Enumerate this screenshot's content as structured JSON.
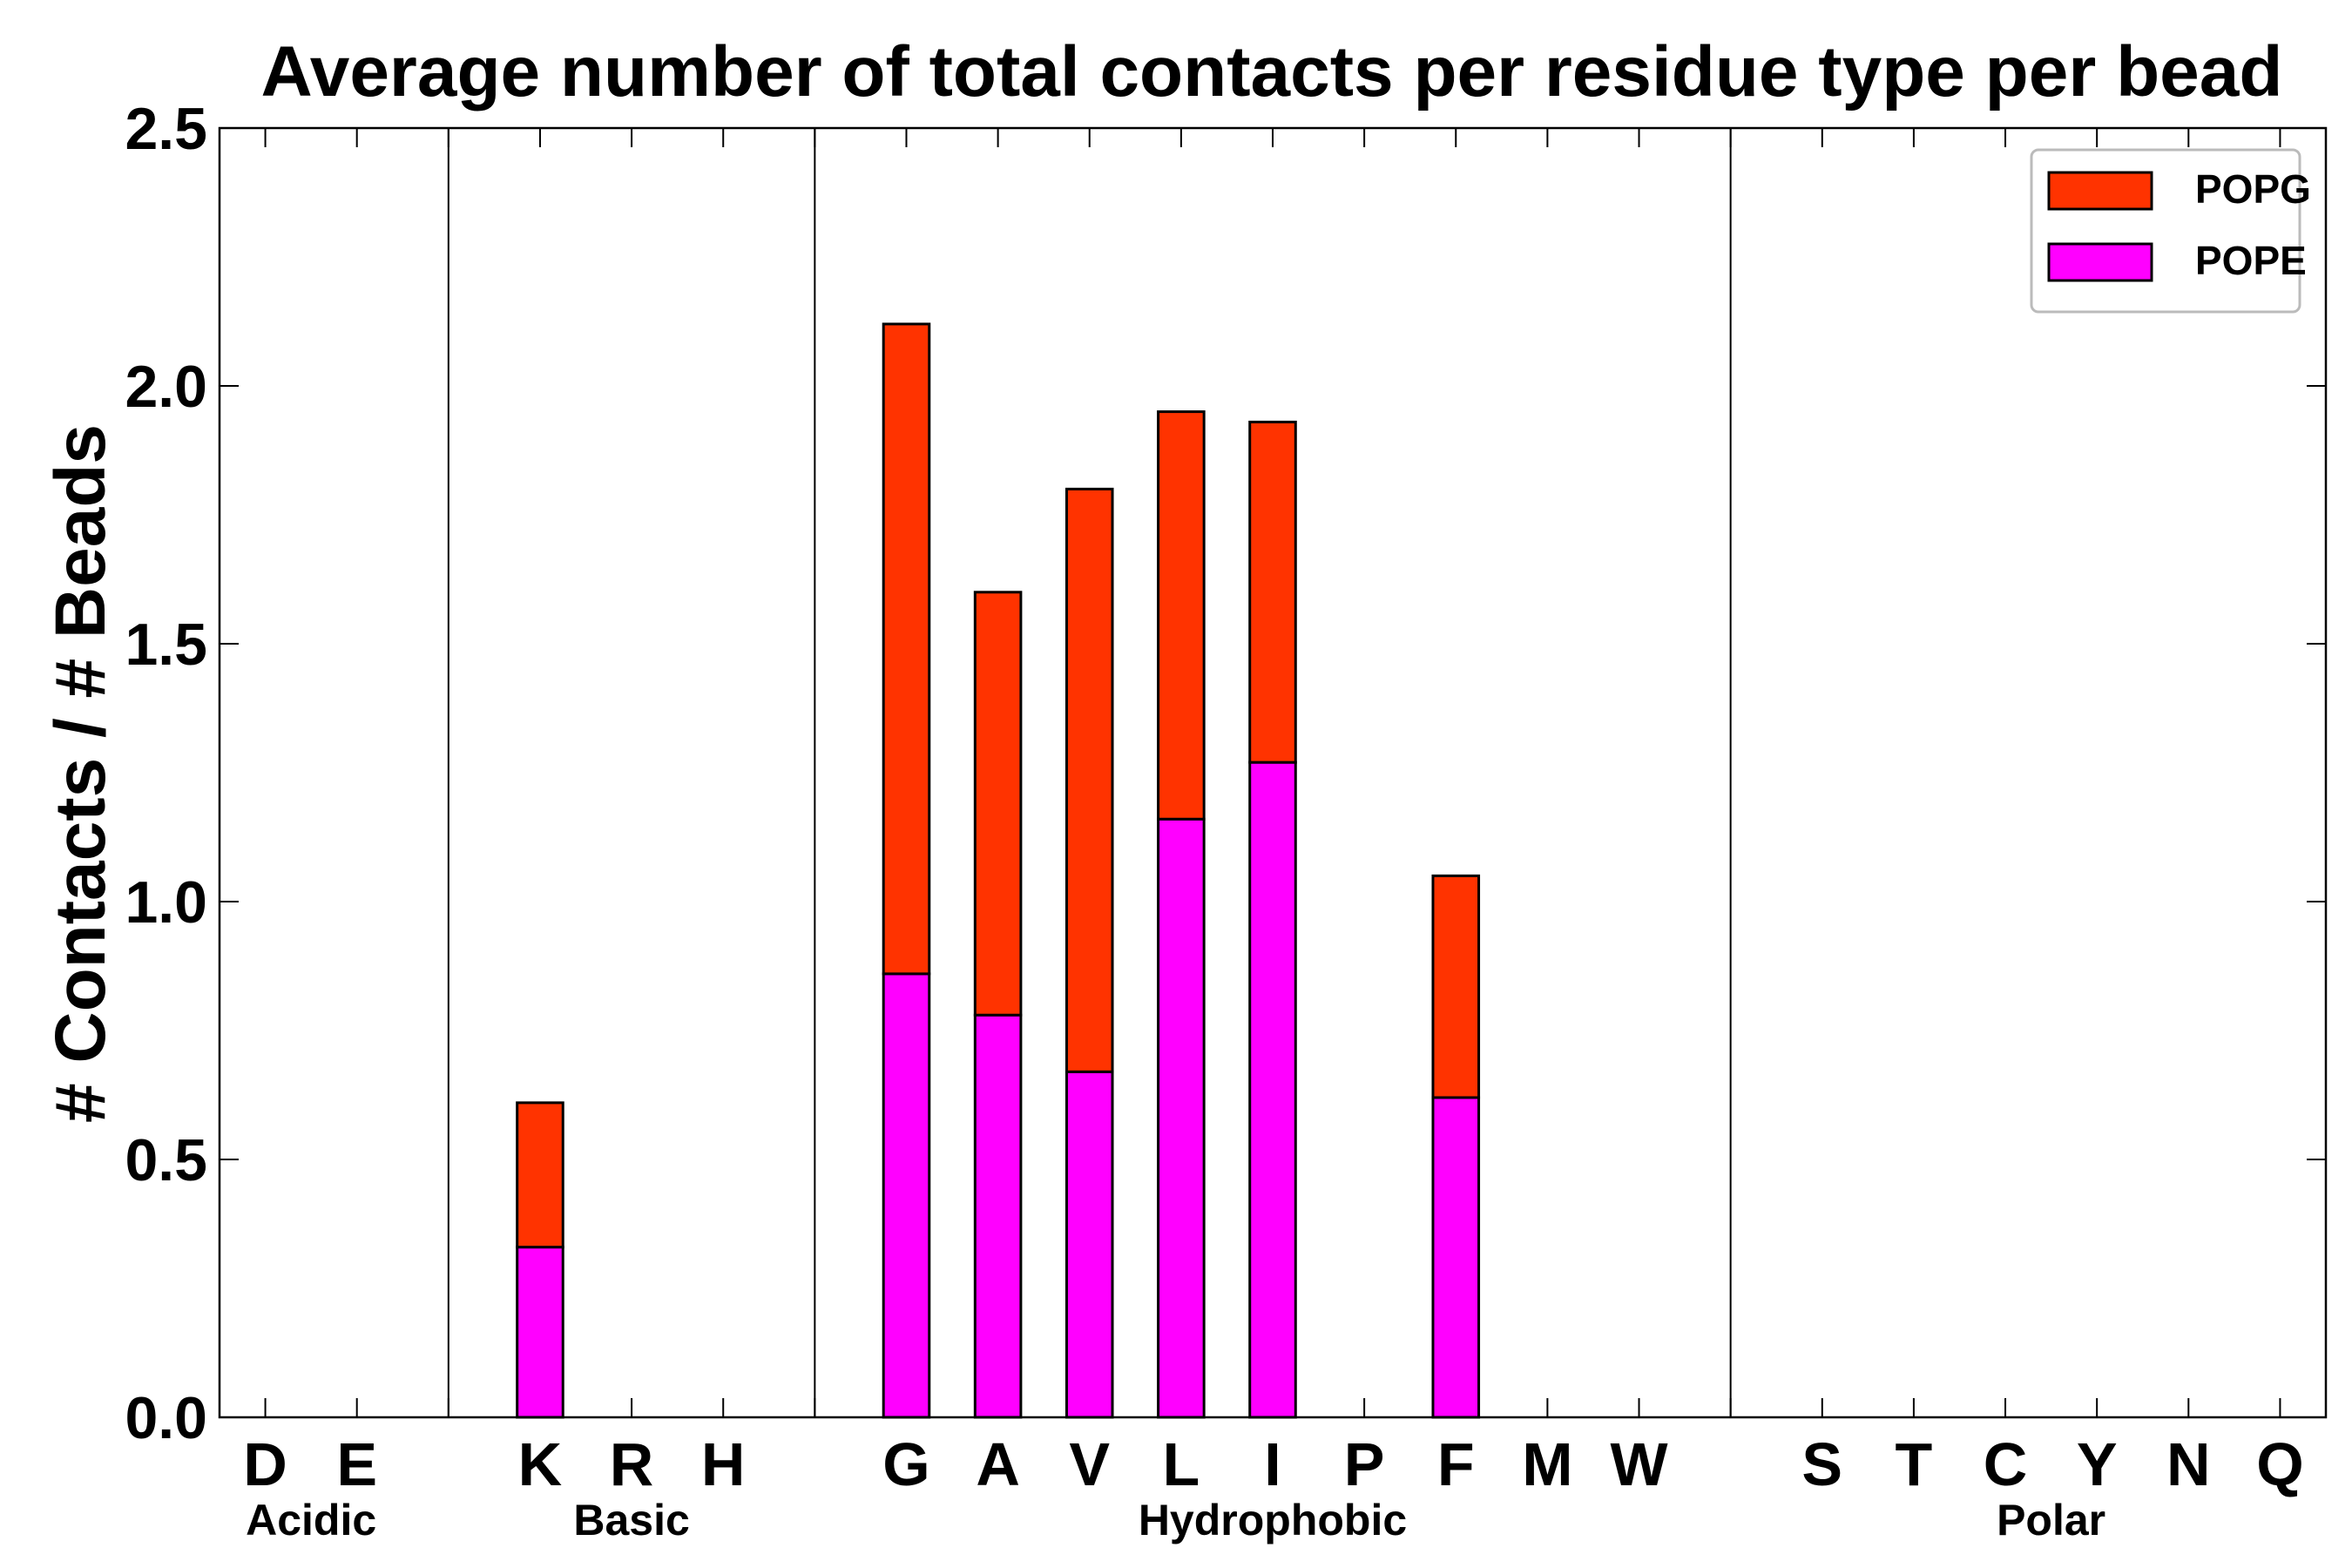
{
  "chart_data": {
    "type": "bar",
    "stacked": true,
    "title": "Average number of total contacts per residue type per bead",
    "xlabel": "",
    "ylabel": "# Contacts / # Beads",
    "ylim": [
      0,
      2.5
    ],
    "yticks": [
      0.0,
      0.5,
      1.0,
      1.5,
      2.0,
      2.5
    ],
    "ytick_labels": [
      "0.0",
      "0.5",
      "1.0",
      "1.5",
      "2.0",
      "2.5"
    ],
    "slots": [
      "D",
      "E",
      "",
      "K",
      "R",
      "H",
      "",
      "G",
      "A",
      "V",
      "L",
      "I",
      "P",
      "F",
      "M",
      "W",
      "",
      "S",
      "T",
      "C",
      "Y",
      "N",
      "Q"
    ],
    "categories": [
      "D",
      "E",
      "K",
      "R",
      "H",
      "G",
      "A",
      "V",
      "L",
      "I",
      "P",
      "F",
      "M",
      "W",
      "S",
      "T",
      "C",
      "Y",
      "N",
      "Q"
    ],
    "groups": [
      {
        "name": "Acidic",
        "members": [
          "D",
          "E"
        ]
      },
      {
        "name": "Basic",
        "members": [
          "K",
          "R",
          "H"
        ]
      },
      {
        "name": "Hydrophobic",
        "members": [
          "G",
          "A",
          "V",
          "L",
          "I",
          "P",
          "F",
          "M",
          "W"
        ]
      },
      {
        "name": "Polar",
        "members": [
          "S",
          "T",
          "C",
          "Y",
          "N",
          "Q"
        ]
      }
    ],
    "series": [
      {
        "name": "POPE",
        "color": "#ff00ff",
        "values": [
          0,
          0,
          0.33,
          0,
          0,
          0.86,
          0.78,
          0.67,
          1.16,
          1.27,
          0,
          0.62,
          0,
          0,
          0,
          0,
          0,
          0,
          0,
          0
        ]
      },
      {
        "name": "POPG",
        "color": "#ff3300",
        "values": [
          0,
          0,
          0.28,
          0,
          0,
          1.26,
          0.82,
          1.13,
          0.79,
          0.66,
          0,
          0.43,
          0,
          0,
          0,
          0,
          0,
          0,
          0,
          0
        ]
      }
    ],
    "legend": {
      "position": "top-right",
      "entries": [
        "POPG",
        "POPE"
      ]
    },
    "grid": false
  }
}
